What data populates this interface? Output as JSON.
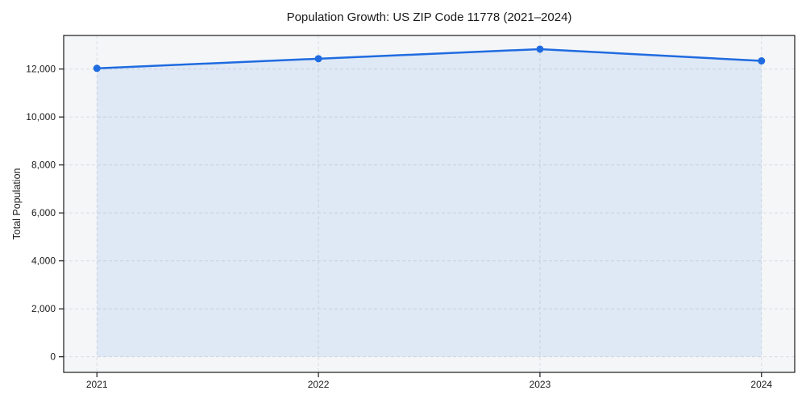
{
  "chart_data": {
    "type": "area",
    "title": "Population Growth: US ZIP Code 11778 (2021–2024)",
    "xlabel": "",
    "ylabel": "Total Population",
    "x": [
      2021,
      2022,
      2023,
      2024
    ],
    "series": [
      {
        "name": "Total Population",
        "values": [
          12030,
          12430,
          12830,
          12340
        ]
      }
    ],
    "xtick_labels": [
      "2021",
      "2022",
      "2023",
      "2024"
    ],
    "yticks": [
      0,
      2000,
      4000,
      6000,
      8000,
      10000,
      12000
    ],
    "ytick_labels": [
      "0",
      "2,000",
      "4,000",
      "6,000",
      "8,000",
      "10,000",
      "12,000"
    ],
    "xlim": [
      2020.85,
      2024.15
    ],
    "ylim": [
      -650,
      13400
    ],
    "grid": true,
    "grid_style": "dashed",
    "legend": false,
    "colors": {
      "line": "#1f6be0",
      "marker": "#1f6be0",
      "fill": "#1f6be0",
      "fill_opacity": 0.1,
      "plot_background": "#f5f6f8",
      "grid": "#d9dce1",
      "spine": "#1a1a1a",
      "text": "#1a1a1a"
    }
  }
}
